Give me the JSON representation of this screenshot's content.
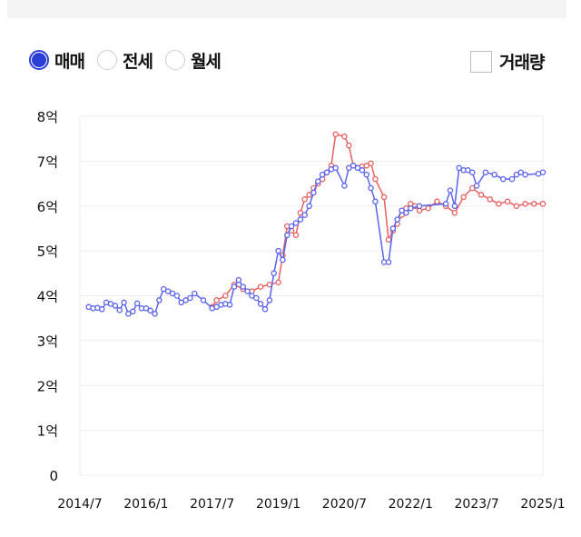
{
  "options": {
    "trade_types": [
      {
        "label": "매매",
        "selected": true
      },
      {
        "label": "전세",
        "selected": false
      },
      {
        "label": "월세",
        "selected": false
      }
    ],
    "volume_label": "거래량",
    "volume_checked": false
  },
  "colors": {
    "accent": "#2b3fd6",
    "series_blue": "#5a63f0",
    "series_red": "#e86060",
    "grid": "#eeeeee"
  },
  "chart_data": {
    "type": "line",
    "y_ticks": [
      {
        "value": 0,
        "label": "0"
      },
      {
        "value": 1,
        "label": "1억"
      },
      {
        "value": 2,
        "label": "2억"
      },
      {
        "value": 3,
        "label": "3억"
      },
      {
        "value": 4,
        "label": "4억"
      },
      {
        "value": 5,
        "label": "5억"
      },
      {
        "value": 6,
        "label": "6억"
      },
      {
        "value": 7,
        "label": "7억"
      },
      {
        "value": 8,
        "label": "8억"
      }
    ],
    "x_ticks": [
      {
        "value": 2014.5,
        "label": "2014/7"
      },
      {
        "value": 2016.0,
        "label": "2016/1"
      },
      {
        "value": 2017.5,
        "label": "2017/7"
      },
      {
        "value": 2019.0,
        "label": "2019/1"
      },
      {
        "value": 2020.5,
        "label": "2020/7"
      },
      {
        "value": 2022.0,
        "label": "2022/1"
      },
      {
        "value": 2023.5,
        "label": "2023/7"
      },
      {
        "value": 2025.0,
        "label": "2025/1"
      }
    ],
    "xlim": [
      2014.5,
      2025.0
    ],
    "ylim": [
      0,
      8
    ],
    "grid": true,
    "series": [
      {
        "color": "#5a63f0",
        "x": [
          2014.7,
          2014.8,
          2014.9,
          2015.0,
          2015.1,
          2015.2,
          2015.3,
          2015.4,
          2015.5,
          2015.6,
          2015.7,
          2015.8,
          2015.9,
          2016.0,
          2016.1,
          2016.2,
          2016.3,
          2016.4,
          2016.5,
          2016.6,
          2016.7,
          2016.8,
          2016.9,
          2017.0,
          2017.1,
          2017.3,
          2017.5,
          2017.6,
          2017.7,
          2017.8,
          2017.9,
          2018.0,
          2018.1,
          2018.2,
          2018.3,
          2018.4,
          2018.5,
          2018.6,
          2018.7,
          2018.8,
          2018.9,
          2019.0,
          2019.1,
          2019.2,
          2019.3,
          2019.4,
          2019.5,
          2019.6,
          2019.7,
          2019.8,
          2019.9,
          2020.0,
          2020.1,
          2020.2,
          2020.3,
          2020.5,
          2020.6,
          2020.7,
          2020.8,
          2020.9,
          2021.0,
          2021.1,
          2021.2,
          2021.4,
          2021.5,
          2021.6,
          2021.7,
          2021.8,
          2021.9,
          2022.0,
          2022.2,
          2022.8,
          2022.9,
          2023.0,
          2023.1,
          2023.2,
          2023.3,
          2023.4,
          2023.5,
          2023.7,
          2023.9,
          2024.1,
          2024.3,
          2024.4,
          2024.5,
          2024.6,
          2024.9,
          2025.0
        ],
        "y": [
          3.75,
          3.72,
          3.73,
          3.7,
          3.85,
          3.82,
          3.78,
          3.68,
          3.85,
          3.6,
          3.65,
          3.83,
          3.72,
          3.72,
          3.67,
          3.6,
          3.9,
          4.15,
          4.1,
          4.05,
          4.0,
          3.85,
          3.9,
          3.95,
          4.05,
          3.9,
          3.72,
          3.75,
          3.8,
          3.82,
          3.8,
          4.2,
          4.35,
          4.2,
          4.1,
          4.0,
          3.95,
          3.82,
          3.7,
          3.9,
          4.5,
          5.0,
          4.8,
          5.35,
          5.55,
          5.62,
          5.7,
          5.8,
          6.0,
          6.3,
          6.55,
          6.7,
          6.75,
          6.82,
          6.85,
          6.45,
          6.85,
          6.9,
          6.85,
          6.8,
          6.7,
          6.4,
          6.1,
          4.75,
          4.75,
          5.5,
          5.7,
          5.9,
          5.85,
          5.95,
          6.0,
          6.05,
          6.35,
          6.0,
          6.85,
          6.8,
          6.8,
          6.75,
          6.45,
          6.75,
          6.7,
          6.6,
          6.6,
          6.7,
          6.75,
          6.7,
          6.72,
          6.75
        ]
      },
      {
        "color": "#e86060",
        "x": [
          2017.5,
          2017.6,
          2017.8,
          2018.0,
          2018.2,
          2018.4,
          2018.6,
          2018.8,
          2019.0,
          2019.1,
          2019.2,
          2019.3,
          2019.4,
          2019.5,
          2019.6,
          2019.7,
          2019.8,
          2019.9,
          2020.0,
          2020.1,
          2020.2,
          2020.3,
          2020.5,
          2020.6,
          2020.7,
          2020.8,
          2020.9,
          2021.0,
          2021.1,
          2021.2,
          2021.4,
          2021.5,
          2021.6,
          2021.7,
          2021.8,
          2021.9,
          2022.0,
          2022.1,
          2022.2,
          2022.4,
          2022.6,
          2022.8,
          2023.0,
          2023.2,
          2023.4,
          2023.6,
          2023.8,
          2024.0,
          2024.2,
          2024.4,
          2024.6,
          2024.8,
          2025.0
        ],
        "y": [
          3.75,
          3.9,
          4.0,
          4.25,
          4.15,
          4.1,
          4.2,
          4.25,
          4.3,
          4.9,
          5.55,
          5.45,
          5.35,
          5.85,
          6.15,
          6.25,
          6.4,
          6.5,
          6.6,
          6.75,
          6.9,
          7.6,
          7.55,
          7.35,
          6.9,
          6.85,
          6.88,
          6.9,
          6.95,
          6.6,
          6.2,
          5.25,
          5.45,
          5.6,
          5.8,
          5.95,
          6.05,
          6.0,
          5.9,
          5.95,
          6.1,
          6.0,
          5.85,
          6.2,
          6.4,
          6.25,
          6.15,
          6.05,
          6.1,
          6.0,
          6.05,
          6.05,
          6.05
        ]
      }
    ]
  }
}
